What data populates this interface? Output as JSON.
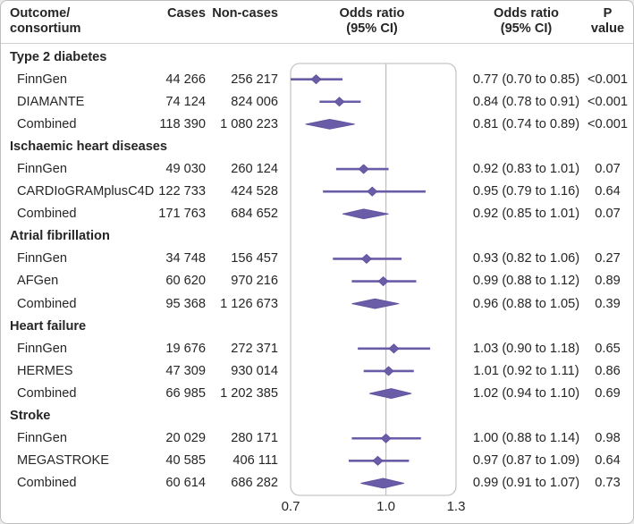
{
  "header": {
    "outcome_line1": "Outcome/",
    "outcome_line2": "consortium",
    "cases": "Cases",
    "noncases": "Non-cases",
    "plot_or_line1": "Odds ratio",
    "plot_or_line2": "(95% CI)",
    "or_line1": "Odds ratio",
    "or_line2": "(95% CI)",
    "p_line1": "P",
    "p_line2": "value"
  },
  "colors": {
    "marker": "#6b5ca8",
    "marker_edge": "#5f4f9e",
    "reference_line": "#bdbdbd",
    "plot_border": "#c5c5c5",
    "outer_border": "#bfbfbf",
    "header_rule": "#cfcfcf",
    "text": "#262626"
  },
  "chart_data": {
    "type": "forest",
    "title": "",
    "xlabel": "Odds ratio (95% CI)",
    "x_axis": {
      "scale": "log",
      "min": 0.7,
      "max": 1.3,
      "ticks": [
        0.7,
        1.0,
        1.3
      ],
      "tick_labels": [
        "0.7",
        "1.0",
        "1.3"
      ],
      "reference_line": 1.0
    },
    "groups": [
      {
        "label": "Type 2 diabetes",
        "rows": [
          {
            "name": "FinnGen",
            "cases": "44 266",
            "noncases": "256 217",
            "or": 0.77,
            "lo": 0.7,
            "hi": 0.85,
            "or_text": "0.77 (0.70 to 0.85)",
            "p": "<0.001",
            "combined": false
          },
          {
            "name": "DIAMANTE",
            "cases": "74 124",
            "noncases": "824 006",
            "or": 0.84,
            "lo": 0.78,
            "hi": 0.91,
            "or_text": "0.84 (0.78 to 0.91)",
            "p": "<0.001",
            "combined": false
          },
          {
            "name": "Combined",
            "cases": "118 390",
            "noncases": "1 080 223",
            "or": 0.81,
            "lo": 0.74,
            "hi": 0.89,
            "or_text": "0.81 (0.74 to 0.89)",
            "p": "<0.001",
            "combined": true
          }
        ]
      },
      {
        "label": "Ischaemic heart diseases",
        "rows": [
          {
            "name": "FinnGen",
            "cases": "49 030",
            "noncases": "260 124",
            "or": 0.92,
            "lo": 0.83,
            "hi": 1.01,
            "or_text": "0.92 (0.83 to 1.01)",
            "p": "0.07",
            "combined": false
          },
          {
            "name": "CARDIoGRAMplusC4D",
            "cases": "122 733",
            "noncases": "424 528",
            "or": 0.95,
            "lo": 0.79,
            "hi": 1.16,
            "or_text": "0.95 (0.79 to 1.16)",
            "p": "0.64",
            "combined": false
          },
          {
            "name": "Combined",
            "cases": "171 763",
            "noncases": "684 652",
            "or": 0.92,
            "lo": 0.85,
            "hi": 1.01,
            "or_text": "0.92 (0.85 to 1.01)",
            "p": "0.07",
            "combined": true
          }
        ]
      },
      {
        "label": "Atrial fibrillation",
        "rows": [
          {
            "name": "FinnGen",
            "cases": "34 748",
            "noncases": "156 457",
            "or": 0.93,
            "lo": 0.82,
            "hi": 1.06,
            "or_text": "0.93 (0.82 to 1.06)",
            "p": "0.27",
            "combined": false
          },
          {
            "name": "AFGen",
            "cases": "60 620",
            "noncases": "970 216",
            "or": 0.99,
            "lo": 0.88,
            "hi": 1.12,
            "or_text": "0.99 (0.88 to 1.12)",
            "p": "0.89",
            "combined": false
          },
          {
            "name": "Combined",
            "cases": "95 368",
            "noncases": "1 126 673",
            "or": 0.96,
            "lo": 0.88,
            "hi": 1.05,
            "or_text": "0.96 (0.88 to 1.05)",
            "p": "0.39",
            "combined": true
          }
        ]
      },
      {
        "label": "Heart failure",
        "rows": [
          {
            "name": "FinnGen",
            "cases": "19 676",
            "noncases": "272 371",
            "or": 1.03,
            "lo": 0.9,
            "hi": 1.18,
            "or_text": "1.03 (0.90 to 1.18)",
            "p": "0.65",
            "combined": false
          },
          {
            "name": "HERMES",
            "cases": "47 309",
            "noncases": "930 014",
            "or": 1.01,
            "lo": 0.92,
            "hi": 1.11,
            "or_text": "1.01 (0.92 to 1.11)",
            "p": "0.86",
            "combined": false
          },
          {
            "name": "Combined",
            "cases": "66 985",
            "noncases": "1 202 385",
            "or": 1.02,
            "lo": 0.94,
            "hi": 1.1,
            "or_text": "1.02 (0.94 to 1.10)",
            "p": "0.69",
            "combined": true
          }
        ]
      },
      {
        "label": "Stroke",
        "rows": [
          {
            "name": "FinnGen",
            "cases": "20 029",
            "noncases": "280 171",
            "or": 1.0,
            "lo": 0.88,
            "hi": 1.14,
            "or_text": "1.00 (0.88 to 1.14)",
            "p": "0.98",
            "combined": false
          },
          {
            "name": "MEGASTROKE",
            "cases": "40 585",
            "noncases": "406 111",
            "or": 0.97,
            "lo": 0.87,
            "hi": 1.09,
            "or_text": "0.97 (0.87 to 1.09)",
            "p": "0.64",
            "combined": false
          },
          {
            "name": "Combined",
            "cases": "60 614",
            "noncases": "686 282",
            "or": 0.99,
            "lo": 0.91,
            "hi": 1.07,
            "or_text": "0.99 (0.91 to 1.07)",
            "p": "0.73",
            "combined": true
          }
        ]
      }
    ]
  }
}
